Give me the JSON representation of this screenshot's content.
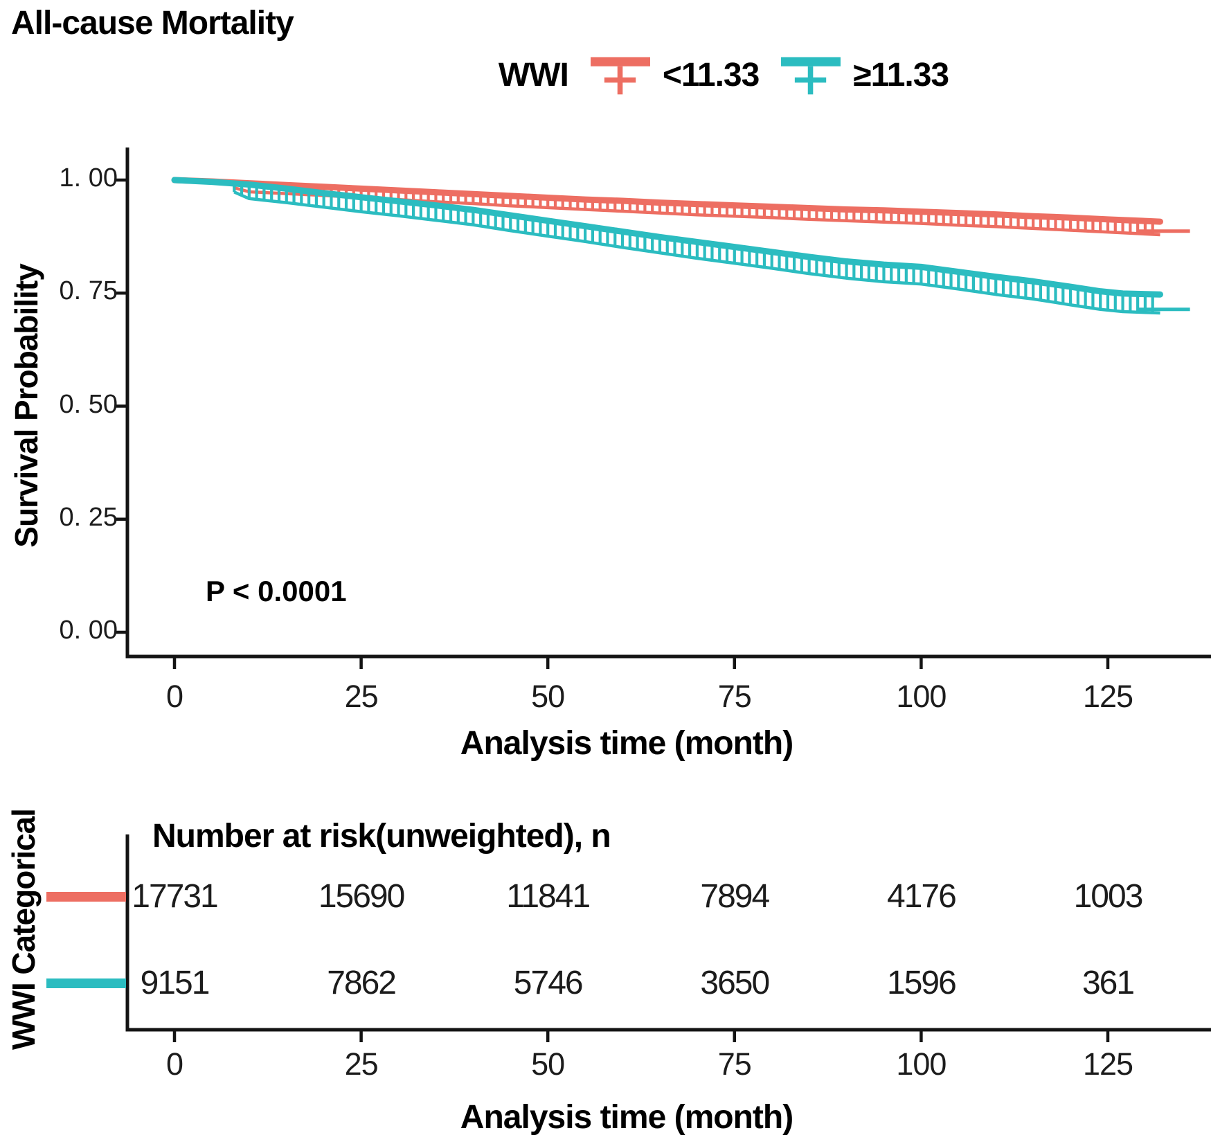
{
  "title": "All-cause Mortality",
  "p_value": "P < 0.0001",
  "legend": {
    "group_label": "WWI",
    "items": [
      {
        "label": "<11.33",
        "color": "#ED6E62"
      },
      {
        "label": "≥11.33",
        "color": "#2BBCC0"
      }
    ]
  },
  "colors": {
    "axis": "#141414",
    "text": "#1c1c1c",
    "group1": "#ED6E62",
    "group2": "#2BBCC0"
  },
  "chart_data": {
    "type": "line",
    "subtype": "kaplan-meier",
    "title": "All-cause Mortality",
    "xlabel": "Analysis time (month)",
    "ylabel": "Survival Probability",
    "annotation": "P < 0.0001",
    "legend_position": "top",
    "grid": false,
    "xlim": [
      0,
      138
    ],
    "ylim": [
      0.0,
      1.05
    ],
    "x_ticks": [
      0,
      25,
      50,
      75,
      100,
      125
    ],
    "y_ticks": [
      {
        "label": "1. 00",
        "value": 1.0
      },
      {
        "label": "0. 75",
        "value": 0.75
      },
      {
        "label": "0. 50",
        "value": 0.5
      },
      {
        "label": "0. 25",
        "value": 0.25
      },
      {
        "label": "0. 00",
        "value": 0.0
      }
    ],
    "series": [
      {
        "name": "<11.33",
        "color": "#ED6E62",
        "tick_start": 8,
        "x": [
          0,
          5,
          10,
          15,
          20,
          25,
          30,
          35,
          40,
          45,
          50,
          55,
          60,
          65,
          70,
          75,
          80,
          85,
          90,
          95,
          100,
          105,
          110,
          115,
          120,
          125,
          132
        ],
        "survival": [
          1.0,
          0.997,
          0.993,
          0.989,
          0.985,
          0.981,
          0.977,
          0.973,
          0.969,
          0.965,
          0.961,
          0.957,
          0.954,
          0.95,
          0.947,
          0.944,
          0.941,
          0.938,
          0.935,
          0.933,
          0.93,
          0.927,
          0.924,
          0.92,
          0.917,
          0.913,
          0.908
        ],
        "lower_ci": [
          1.0,
          0.996,
          0.974,
          0.97,
          0.966,
          0.961,
          0.957,
          0.952,
          0.948,
          0.943,
          0.939,
          0.935,
          0.931,
          0.927,
          0.923,
          0.92,
          0.917,
          0.913,
          0.91,
          0.907,
          0.904,
          0.9,
          0.897,
          0.893,
          0.889,
          0.885,
          0.879
        ]
      },
      {
        "name": "≥11.33",
        "color": "#2BBCC0",
        "tick_start": 8,
        "x": [
          0,
          5,
          10,
          15,
          20,
          25,
          30,
          35,
          40,
          45,
          50,
          55,
          60,
          65,
          70,
          75,
          80,
          85,
          90,
          95,
          100,
          105,
          110,
          115,
          120,
          124,
          127,
          132
        ],
        "survival": [
          1.0,
          0.996,
          0.99,
          0.981,
          0.971,
          0.962,
          0.953,
          0.944,
          0.934,
          0.922,
          0.91,
          0.898,
          0.886,
          0.874,
          0.863,
          0.852,
          0.841,
          0.83,
          0.82,
          0.813,
          0.808,
          0.797,
          0.786,
          0.776,
          0.764,
          0.754,
          0.749,
          0.747
        ],
        "lower_ci": [
          1.0,
          0.995,
          0.959,
          0.95,
          0.94,
          0.93,
          0.921,
          0.911,
          0.901,
          0.888,
          0.876,
          0.864,
          0.851,
          0.839,
          0.827,
          0.816,
          0.805,
          0.793,
          0.783,
          0.775,
          0.77,
          0.759,
          0.747,
          0.737,
          0.724,
          0.714,
          0.709,
          0.706
        ]
      }
    ]
  },
  "risk_table": {
    "header": "Number at risk(unweighted), n",
    "row_axis_label": "WWI Categorical",
    "xlabel": "Analysis time (month)",
    "x_ticks": [
      0,
      25,
      50,
      75,
      100,
      125
    ],
    "rows": [
      {
        "name": "<11.33",
        "color": "#ED6E62",
        "counts": [
          "17731",
          "15690",
          "11841",
          "7894",
          "4176",
          "1003"
        ]
      },
      {
        "name": "≥11.33",
        "color": "#2BBCC0",
        "counts": [
          "9151",
          "7862",
          "5746",
          "3650",
          "1596",
          "361"
        ]
      }
    ]
  }
}
